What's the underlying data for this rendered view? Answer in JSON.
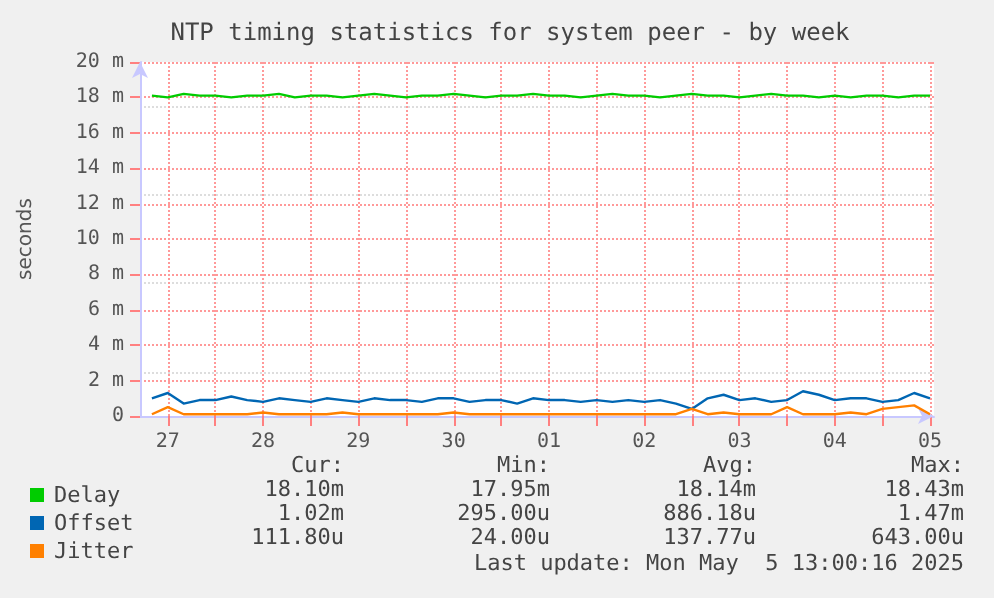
{
  "chart_data": {
    "type": "line",
    "title": "NTP timing statistics for system peer - by week",
    "ylabel": "seconds",
    "x": [
      "2025-04-27T08:00",
      "2025-04-27T12:00",
      "2025-04-27T16:00",
      "2025-04-27T20:00",
      "2025-04-28T00:00",
      "2025-04-28T04:00",
      "2025-04-28T08:00",
      "2025-04-28T12:00",
      "2025-04-28T16:00",
      "2025-04-28T20:00",
      "2025-04-29T00:00",
      "2025-04-29T04:00",
      "2025-04-29T08:00",
      "2025-04-29T12:00",
      "2025-04-29T16:00",
      "2025-04-29T20:00",
      "2025-04-30T00:00",
      "2025-04-30T04:00",
      "2025-04-30T08:00",
      "2025-04-30T12:00",
      "2025-04-30T16:00",
      "2025-04-30T20:00",
      "2025-05-01T00:00",
      "2025-05-01T04:00",
      "2025-05-01T08:00",
      "2025-05-01T12:00",
      "2025-05-01T16:00",
      "2025-05-01T20:00",
      "2025-05-02T00:00",
      "2025-05-02T04:00",
      "2025-05-02T08:00",
      "2025-05-02T12:00",
      "2025-05-02T16:00",
      "2025-05-02T20:00",
      "2025-05-03T00:00",
      "2025-05-03T04:00",
      "2025-05-03T08:00",
      "2025-05-03T12:00",
      "2025-05-03T16:00",
      "2025-05-03T20:00",
      "2025-05-04T00:00",
      "2025-05-04T04:00",
      "2025-05-04T08:00",
      "2025-05-04T12:00",
      "2025-05-04T16:00",
      "2025-05-04T20:00",
      "2025-05-05T00:00",
      "2025-05-05T04:00",
      "2025-05-05T08:00",
      "2025-05-05T12:00"
    ],
    "series": [
      {
        "name": "Delay",
        "color": "#00cc00",
        "values": [
          18.1,
          18.0,
          18.2,
          18.1,
          18.1,
          18.0,
          18.1,
          18.1,
          18.2,
          18.0,
          18.1,
          18.1,
          18.0,
          18.1,
          18.2,
          18.1,
          18.0,
          18.1,
          18.1,
          18.2,
          18.1,
          18.0,
          18.1,
          18.1,
          18.2,
          18.1,
          18.1,
          18.0,
          18.1,
          18.2,
          18.1,
          18.1,
          18.0,
          18.1,
          18.2,
          18.1,
          18.1,
          18.0,
          18.1,
          18.2,
          18.1,
          18.1,
          18.0,
          18.1,
          18.0,
          18.1,
          18.1,
          18.0,
          18.1,
          18.1
        ]
      },
      {
        "name": "Offset",
        "color": "#0066b3",
        "values": [
          1.0,
          1.3,
          0.7,
          0.9,
          0.9,
          1.1,
          0.9,
          0.8,
          1.0,
          0.9,
          0.8,
          1.0,
          0.9,
          0.8,
          1.0,
          0.9,
          0.9,
          0.8,
          1.0,
          1.0,
          0.8,
          0.9,
          0.9,
          0.7,
          1.0,
          0.9,
          0.9,
          0.8,
          0.9,
          0.8,
          0.9,
          0.8,
          0.9,
          0.7,
          0.4,
          1.0,
          1.2,
          0.9,
          1.0,
          0.8,
          0.9,
          1.4,
          1.2,
          0.9,
          1.0,
          1.0,
          0.8,
          0.9,
          1.3,
          1.0
        ]
      },
      {
        "name": "Jitter",
        "color": "#ff8000",
        "values": [
          0.1,
          0.5,
          0.1,
          0.1,
          0.1,
          0.1,
          0.1,
          0.2,
          0.1,
          0.1,
          0.1,
          0.1,
          0.2,
          0.1,
          0.1,
          0.1,
          0.1,
          0.1,
          0.1,
          0.2,
          0.1,
          0.1,
          0.1,
          0.1,
          0.1,
          0.1,
          0.1,
          0.1,
          0.1,
          0.1,
          0.1,
          0.1,
          0.1,
          0.1,
          0.4,
          0.1,
          0.2,
          0.1,
          0.1,
          0.1,
          0.5,
          0.1,
          0.1,
          0.1,
          0.2,
          0.1,
          0.4,
          0.5,
          0.6,
          0.1
        ]
      }
    ],
    "xlim": [
      "2025-04-27T05:00",
      "2025-05-05T13:00"
    ],
    "xticks": [
      {
        "value": "2025-04-27T12:00",
        "label": "27"
      },
      {
        "value": "2025-04-28T00:00",
        "label": null
      },
      {
        "value": "2025-04-28T12:00",
        "label": "28"
      },
      {
        "value": "2025-04-29T00:00",
        "label": null
      },
      {
        "value": "2025-04-29T12:00",
        "label": "29"
      },
      {
        "value": "2025-04-30T00:00",
        "label": null
      },
      {
        "value": "2025-04-30T12:00",
        "label": "30"
      },
      {
        "value": "2025-05-01T00:00",
        "label": null
      },
      {
        "value": "2025-05-01T12:00",
        "label": "01"
      },
      {
        "value": "2025-05-02T00:00",
        "label": null
      },
      {
        "value": "2025-05-02T12:00",
        "label": "02"
      },
      {
        "value": "2025-05-03T00:00",
        "label": null
      },
      {
        "value": "2025-05-03T12:00",
        "label": "03"
      },
      {
        "value": "2025-05-04T00:00",
        "label": null
      },
      {
        "value": "2025-05-04T12:00",
        "label": "04"
      },
      {
        "value": "2025-05-05T00:00",
        "label": null
      },
      {
        "value": "2025-05-05T12:00",
        "label": "05"
      }
    ],
    "ylim": [
      0,
      20
    ],
    "yticks": [
      0,
      {
        "value": 2,
        "label": "2 m"
      },
      {
        "value": 4,
        "label": "4 m"
      },
      {
        "value": 6,
        "label": "6 m"
      },
      {
        "value": 8,
        "label": "8 m"
      },
      {
        "value": 10,
        "label": "10 m"
      },
      {
        "value": 12,
        "label": "12 m"
      },
      {
        "value": 14,
        "label": "14 m"
      },
      {
        "value": 16,
        "label": "16 m"
      },
      {
        "value": 18,
        "label": "18 m"
      },
      {
        "value": 20,
        "label": "20 m"
      }
    ],
    "grid": true,
    "legend": "bottom left",
    "marker": "none",
    "line_style": "solid",
    "annotations": [
      "Cur:",
      "Min:",
      "Avg:",
      "Max:",
      "18.10m",
      "17.95m",
      "18.14m",
      "18.43m",
      "1.02m",
      "295.00u",
      "886.18u",
      "1.47m",
      "111.80u",
      "24.00u",
      "137.77u",
      "643.00u",
      "Last update: Mon May  5 13:00:16 2025"
    ]
  }
}
